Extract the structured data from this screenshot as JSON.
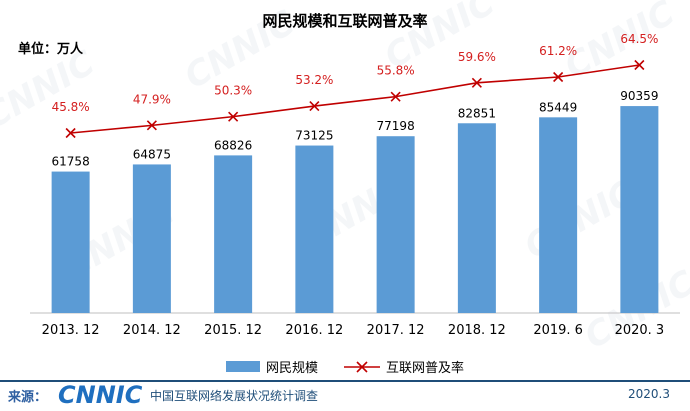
{
  "title": "网民规模和互联网普及率",
  "unit_label": "单位：万人",
  "legend": {
    "bar_label": "网民规模",
    "line_label": "互联网普及率"
  },
  "footer": {
    "source_label": "来源：",
    "logo_text": "CNNIC",
    "center_name": "中国互联网络发展状况统计调查",
    "date": "2020.3"
  },
  "watermark_text": "CNNIC",
  "colors": {
    "bar": "#5b9bd5",
    "line": "#c00000",
    "rate_label": "#d42020"
  },
  "chart_data": {
    "type": "bar",
    "title": "网民规模和互联网普及率",
    "ylabel": "单位：万人",
    "categories": [
      "2013. 12",
      "2014. 12",
      "2015. 12",
      "2016. 12",
      "2017. 12",
      "2018. 12",
      "2019. 6",
      "2020. 3"
    ],
    "series": [
      {
        "name": "网民规模",
        "type": "bar",
        "values": [
          61758,
          64875,
          68826,
          73125,
          77198,
          82851,
          85449,
          90359
        ],
        "labels": [
          "61758",
          "64875",
          "68826",
          "73125",
          "77198",
          "82851",
          "85449",
          "90359"
        ]
      },
      {
        "name": "互联网普及率",
        "type": "line",
        "marker": "x",
        "values": [
          45.8,
          47.9,
          50.3,
          53.2,
          55.8,
          59.6,
          61.2,
          64.5
        ],
        "labels": [
          "45.8%",
          "47.9%",
          "50.3%",
          "53.2%",
          "55.8%",
          "59.6%",
          "61.2%",
          "64.5%"
        ]
      }
    ],
    "grid": false,
    "legend_position": "bottom-center"
  }
}
